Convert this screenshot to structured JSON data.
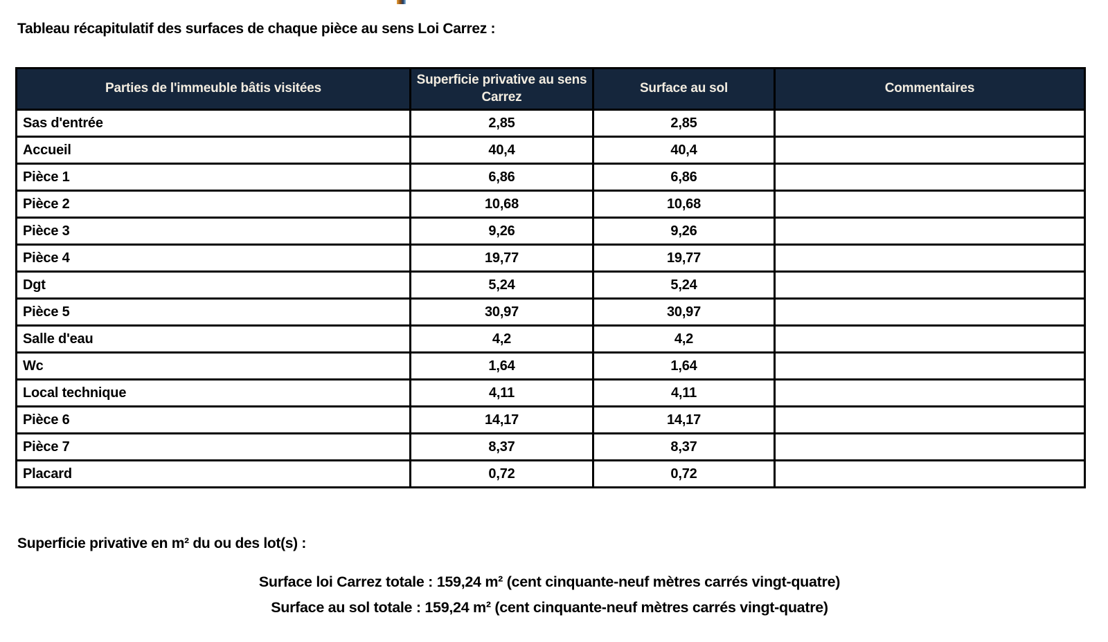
{
  "page": {
    "intro": "Tableau récapitulatif des surfaces de chaque pièce au sens Loi Carrez :",
    "superficie_line": "Superficie privative en m² du ou des lot(s) :",
    "total_carrez": "Surface loi Carrez totale : 159,24 m² (cent cinquante-neuf mètres carrés vingt-quatre)",
    "total_sol": "Surface au sol totale : 159,24 m² (cent cinquante-neuf mètres carrés vingt-quatre)"
  },
  "table": {
    "headers": [
      "Parties de l'immeuble bâtis visitées",
      "Superficie privative au sens Carrez",
      "Surface au sol",
      "Commentaires"
    ],
    "rows": [
      {
        "label": "Sas d'entrée",
        "carrez": "2,85",
        "sol": "2,85",
        "comment": ""
      },
      {
        "label": "Accueil",
        "carrez": "40,4",
        "sol": "40,4",
        "comment": ""
      },
      {
        "label": "Pièce 1",
        "carrez": "6,86",
        "sol": "6,86",
        "comment": ""
      },
      {
        "label": "Pièce 2",
        "carrez": "10,68",
        "sol": "10,68",
        "comment": ""
      },
      {
        "label": "Pièce 3",
        "carrez": "9,26",
        "sol": "9,26",
        "comment": ""
      },
      {
        "label": "Pièce 4",
        "carrez": "19,77",
        "sol": "19,77",
        "comment": ""
      },
      {
        "label": "Dgt",
        "carrez": "5,24",
        "sol": "5,24",
        "comment": ""
      },
      {
        "label": "Pièce 5",
        "carrez": "30,97",
        "sol": "30,97",
        "comment": ""
      },
      {
        "label": "Salle d'eau",
        "carrez": "4,2",
        "sol": "4,2",
        "comment": ""
      },
      {
        "label": "Wc",
        "carrez": "1,64",
        "sol": "1,64",
        "comment": ""
      },
      {
        "label": "Local technique",
        "carrez": "4,11",
        "sol": "4,11",
        "comment": ""
      },
      {
        "label": "Pièce 6",
        "carrez": "14,17",
        "sol": "14,17",
        "comment": ""
      },
      {
        "label": "Pièce 7",
        "carrez": "8,37",
        "sol": "8,37",
        "comment": ""
      },
      {
        "label": "Placard",
        "carrez": "0,72",
        "sol": "0,72",
        "comment": ""
      }
    ]
  },
  "colors": {
    "header_bg": "#15263c",
    "header_text": "#f2ece0",
    "border": "#000000",
    "text": "#000000"
  }
}
